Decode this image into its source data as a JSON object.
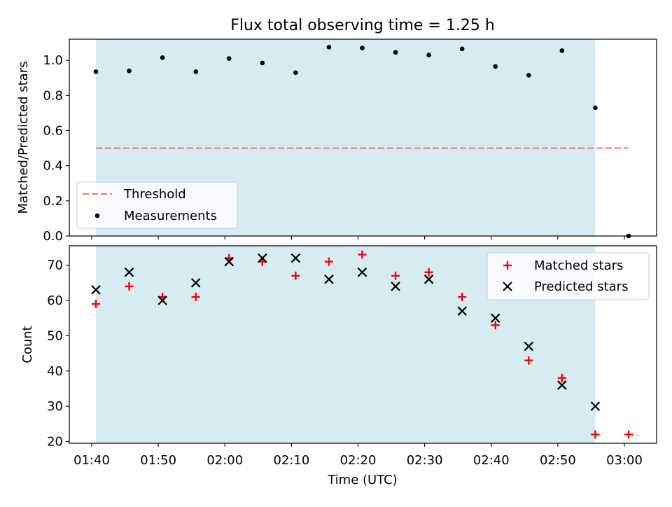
{
  "chart_data": [
    {
      "type": "scatter",
      "title": "Flux total observing time = 1.25 h",
      "xlabel": "",
      "ylabel": "Matched/Predicted stars",
      "ylim": [
        0.0,
        1.12
      ],
      "yticks": [
        "0.0",
        "0.2",
        "0.4",
        "0.6",
        "0.8",
        "1.0"
      ],
      "x_unit": "minutes after 01:40 UTC",
      "x": [
        0,
        5,
        10,
        15,
        20,
        25,
        30,
        35,
        40,
        45,
        50,
        55,
        60,
        65,
        70,
        75,
        80
      ],
      "series": [
        {
          "name": "Measurements",
          "marker": "dot",
          "color": "#000000",
          "values": [
            0.935,
            0.94,
            1.015,
            0.935,
            1.01,
            0.985,
            0.93,
            1.075,
            1.07,
            1.045,
            1.03,
            1.065,
            0.965,
            0.915,
            1.055,
            0.73,
            0.0
          ]
        },
        {
          "name": "Threshold",
          "marker": "dashed-line",
          "color": "#f08080",
          "x_range": [
            0,
            80
          ],
          "value": 0.5
        }
      ],
      "shaded_span_x": [
        0,
        75
      ],
      "shade_color": "#add8e6",
      "legend_placement": "lower-left",
      "grid": false
    },
    {
      "type": "scatter",
      "xlabel": "Time (UTC)",
      "ylabel": "Count",
      "ylim": [
        19.5,
        75.5
      ],
      "yticks": [
        "20",
        "30",
        "40",
        "50",
        "60",
        "70"
      ],
      "xticks": [
        "01:40",
        "01:50",
        "02:00",
        "02:10",
        "02:20",
        "02:30",
        "02:40",
        "02:50",
        "03:00"
      ],
      "x": [
        0,
        5,
        10,
        15,
        20,
        25,
        30,
        35,
        40,
        45,
        50,
        55,
        60,
        65,
        70,
        75,
        80
      ],
      "series": [
        {
          "name": "Matched stars",
          "marker": "plus",
          "color": "#ff0000",
          "values": [
            59,
            64,
            61,
            61,
            72,
            71,
            67,
            71,
            73,
            67,
            68,
            61,
            53,
            43,
            38,
            22,
            22
          ]
        },
        {
          "name": "Predicted stars",
          "marker": "x",
          "color": "#000000",
          "values": [
            63,
            68,
            60,
            65,
            71,
            72,
            72,
            66,
            68,
            64,
            66,
            57,
            55,
            47,
            36,
            30,
            null
          ]
        }
      ],
      "shaded_span_x": [
        0,
        75
      ],
      "shade_color": "#add8e6",
      "legend_placement": "upper-right",
      "grid": false
    }
  ]
}
